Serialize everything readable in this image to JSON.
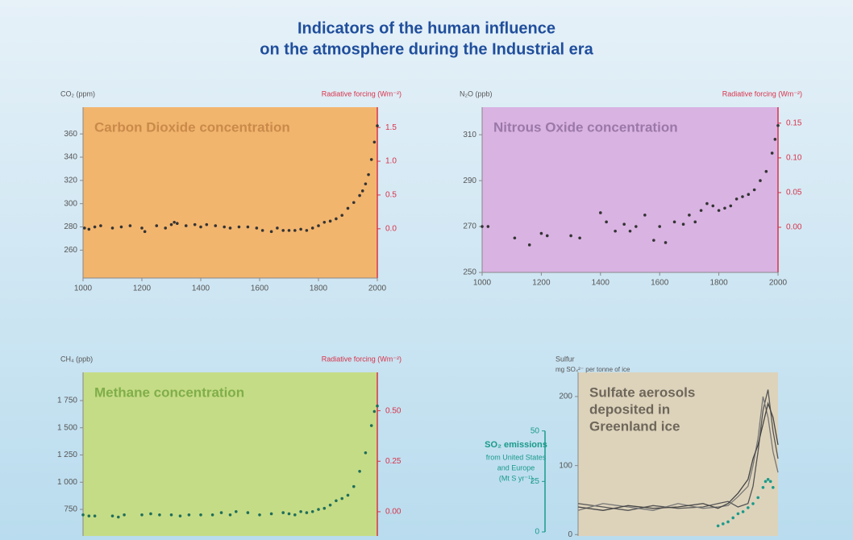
{
  "title": [
    "Indicators of the human influence",
    "on the atmosphere during the Industrial era"
  ],
  "chart_data": [
    {
      "type": "scatter",
      "title": [
        "Carbon Dioxide concentration"
      ],
      "title_color": "#c98a4a",
      "background": "#f2b56e",
      "y_label": "CO₂ (ppm)",
      "y2_label": "Radiative forcing (Wm⁻²)",
      "color": "#333333",
      "x": [
        1005,
        1020,
        1040,
        1060,
        1100,
        1130,
        1160,
        1200,
        1210,
        1250,
        1280,
        1300,
        1310,
        1320,
        1350,
        1380,
        1400,
        1420,
        1450,
        1480,
        1500,
        1530,
        1560,
        1590,
        1610,
        1640,
        1660,
        1680,
        1700,
        1720,
        1740,
        1760,
        1780,
        1800,
        1820,
        1840,
        1860,
        1880,
        1900,
        1920,
        1940,
        1950,
        1960,
        1970,
        1980,
        1990,
        2000
      ],
      "values": [
        279,
        278,
        280,
        281,
        279,
        280,
        281,
        279,
        276,
        281,
        279,
        282,
        284,
        283,
        281,
        282,
        280,
        282,
        281,
        280,
        279,
        280,
        280,
        279,
        277,
        276,
        279,
        277,
        277,
        277,
        278,
        277,
        279,
        281,
        284,
        285,
        287,
        290,
        296,
        301,
        307,
        311,
        317,
        325,
        338,
        353,
        367
      ],
      "xlim": [
        1000,
        2000
      ],
      "xticks": [
        1000,
        1200,
        1400,
        1600,
        1800,
        2000
      ],
      "ylim": [
        236,
        383
      ],
      "yticks": [
        260,
        280,
        300,
        320,
        340,
        360
      ],
      "y2lim": [
        -0.73,
        1.8
      ],
      "y2ticks": [
        {
          "value": 0,
          "label": "0.0"
        },
        0.5,
        {
          "value": 1,
          "label": "1.0"
        },
        1.5
      ]
    },
    {
      "type": "scatter",
      "title": [
        "Nitrous Oxide concentration"
      ],
      "title_color": "#9a78a8",
      "background": "#d9b3e2",
      "y_label": "N₂O (ppb)",
      "y2_label": "Radiative forcing (Wm⁻²)",
      "color": "#333333",
      "x": [
        1000,
        1020,
        1110,
        1160,
        1200,
        1220,
        1300,
        1330,
        1400,
        1420,
        1450,
        1480,
        1500,
        1520,
        1550,
        1580,
        1600,
        1620,
        1650,
        1680,
        1700,
        1720,
        1740,
        1760,
        1780,
        1800,
        1820,
        1840,
        1860,
        1880,
        1900,
        1920,
        1940,
        1960,
        1980,
        1990,
        2000
      ],
      "values": [
        270,
        270,
        265,
        262,
        267,
        266,
        266,
        265,
        276,
        272,
        268,
        271,
        268,
        270,
        275,
        264,
        270,
        263,
        272,
        271,
        275,
        272,
        277,
        280,
        279,
        277,
        278,
        279,
        282,
        283,
        284,
        286,
        290,
        294,
        302,
        308,
        314
      ],
      "xlim": [
        1000,
        2000
      ],
      "xticks": [
        1000,
        1200,
        1400,
        1600,
        1800,
        2000
      ],
      "ylim": [
        250,
        322
      ],
      "yticks": [
        250,
        270,
        290,
        310
      ],
      "y2lim": [
        -0.065,
        0.173
      ],
      "y2ticks": [
        {
          "value": 0,
          "label": "0.00"
        },
        0.05,
        {
          "value": 0.1,
          "label": "0.10"
        },
        0.15
      ]
    },
    {
      "type": "scatter",
      "title": [
        "Methane concentration"
      ],
      "title_color": "#7fae4a",
      "background": "#c5dc86",
      "y_label": "CH₄ (ppb)",
      "y2_label": "Radiative forcing (Wm⁻²)",
      "color": "#1f6e5a",
      "x": [
        1000,
        1020,
        1040,
        1100,
        1120,
        1140,
        1200,
        1230,
        1260,
        1300,
        1330,
        1360,
        1400,
        1440,
        1470,
        1500,
        1520,
        1560,
        1600,
        1640,
        1680,
        1700,
        1720,
        1740,
        1760,
        1780,
        1800,
        1820,
        1840,
        1860,
        1880,
        1900,
        1920,
        1940,
        1960,
        1980,
        1990,
        2000
      ],
      "values": [
        700,
        690,
        690,
        690,
        680,
        700,
        700,
        710,
        700,
        700,
        690,
        700,
        700,
        700,
        720,
        700,
        730,
        720,
        700,
        710,
        720,
        710,
        700,
        730,
        720,
        730,
        750,
        760,
        790,
        830,
        850,
        880,
        960,
        1100,
        1270,
        1520,
        1650,
        1700
      ],
      "xlim": [
        1000,
        2000
      ],
      "ylim": [
        506,
        2009
      ],
      "yticks": [
        750,
        {
          "value": 1000,
          "label": "1 000"
        },
        {
          "value": 1250,
          "label": "1 250"
        },
        {
          "value": 1500,
          "label": "1 500"
        },
        {
          "value": 1750,
          "label": "1 750"
        }
      ],
      "y2lim": [
        -0.12,
        0.69
      ],
      "y2ticks": [
        {
          "value": 0,
          "label": "0.00"
        },
        0.25,
        {
          "value": 0.5,
          "label": "0.50"
        }
      ]
    },
    {
      "type": "line",
      "title": [
        "Sulfate aerosols",
        "deposited in",
        "Greenland ice"
      ],
      "title_color": "#6e665a",
      "background": "#ddd3bb",
      "y_label": "Sulfur",
      "y_sublabel": "mg SO₄²⁻ per tonne of ice",
      "y2_label": "SO₂ emissions",
      "y2_sublabel": [
        "from United States",
        "and Europe",
        "(Mt S yr⁻¹)"
      ],
      "y2_color": "#1a9a8a",
      "x": [
        1600,
        1650,
        1700,
        1750,
        1800,
        1850,
        1880,
        1900,
        1920,
        1940,
        1950,
        1960,
        1970,
        1980,
        1990,
        2000
      ],
      "series": [
        {
          "color": "#555555",
          "values": [
            45,
            40,
            35,
            42,
            38,
            40,
            45,
            48,
            40,
            45,
            70,
            120,
            180,
            210,
            150,
            110
          ]
        },
        {
          "color": "#777777",
          "values": [
            35,
            45,
            40,
            35,
            45,
            38,
            40,
            42,
            55,
            70,
            100,
            140,
            200,
            170,
            120,
            90
          ]
        },
        {
          "color": "#444444",
          "values": [
            40,
            35,
            42,
            38,
            40,
            45,
            38,
            45,
            60,
            80,
            110,
            130,
            160,
            190,
            170,
            130
          ]
        }
      ],
      "so2_x": [
        1880,
        1890,
        1900,
        1910,
        1920,
        1930,
        1940,
        1950,
        1960,
        1970,
        1975,
        1980,
        1985,
        1990
      ],
      "so2_values": [
        3,
        4,
        5,
        7,
        9,
        10,
        12,
        14,
        17,
        22,
        25,
        26,
        25,
        22
      ],
      "xlim": [
        1600,
        2000
      ],
      "ylim": [
        -2,
        235
      ],
      "yticks": [
        0,
        100,
        200
      ],
      "y2lim": [
        -2,
        79
      ],
      "y2ticks": [
        0,
        25,
        50
      ]
    }
  ]
}
